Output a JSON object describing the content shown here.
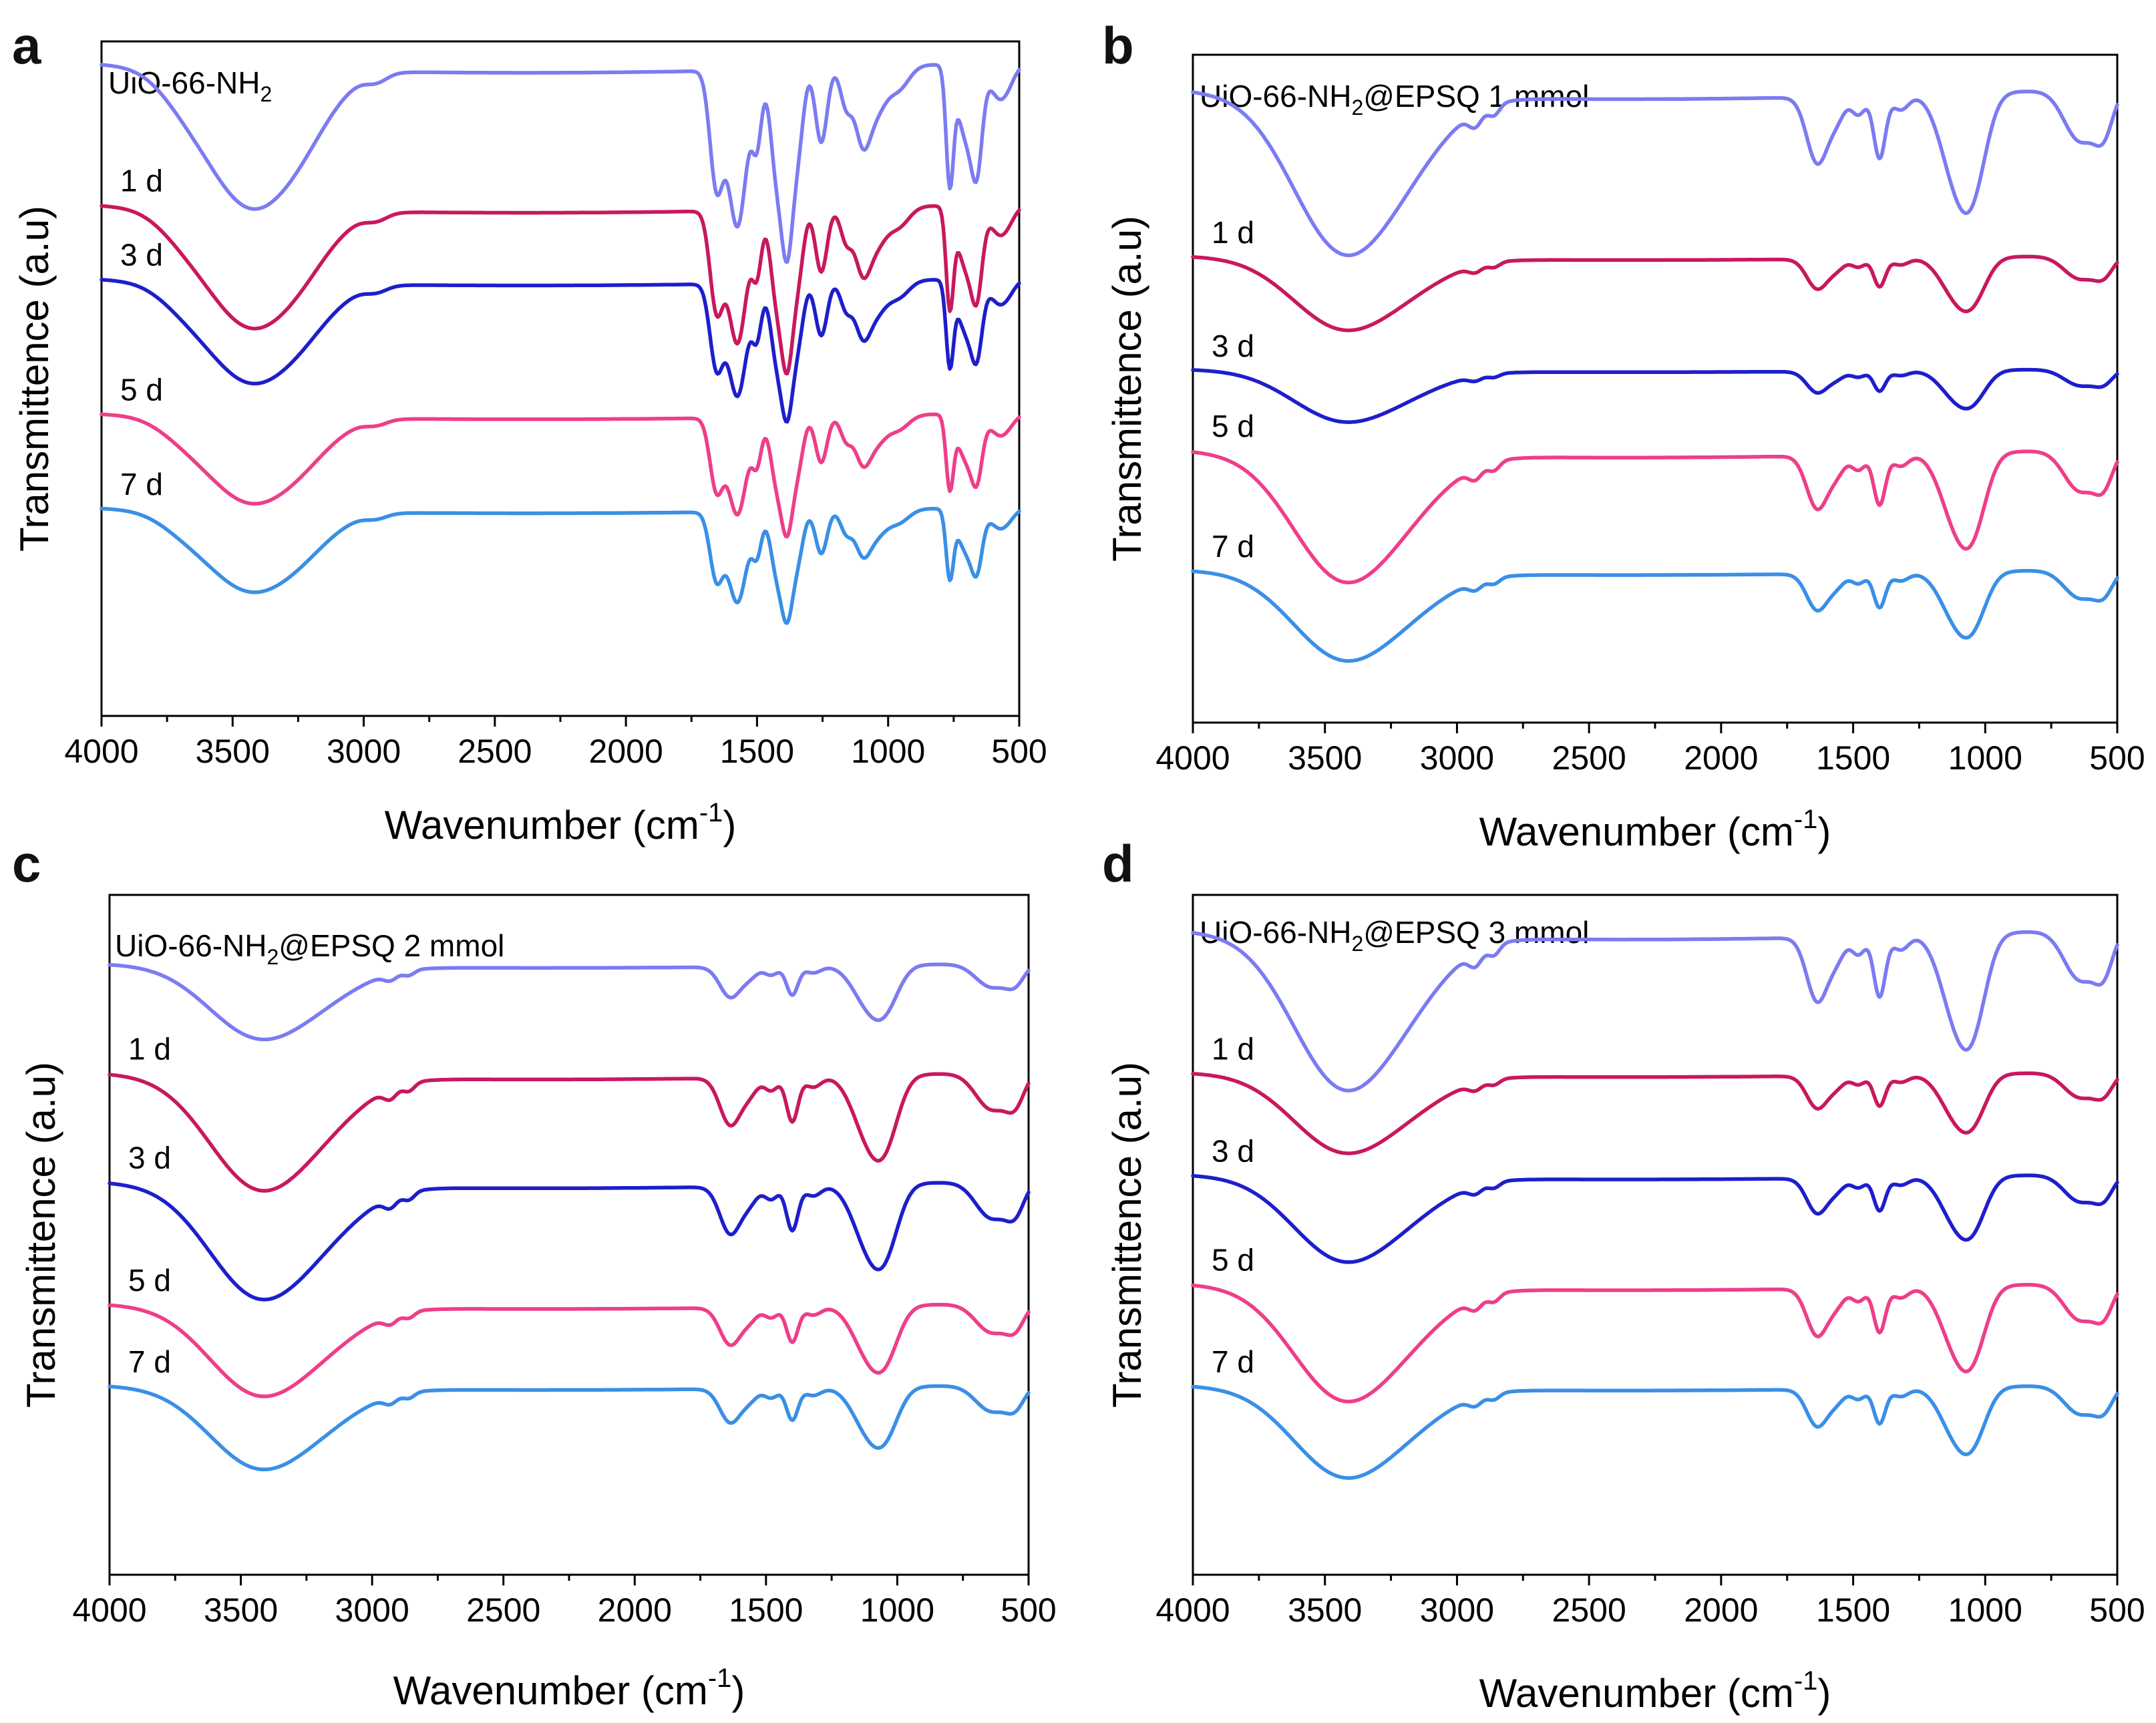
{
  "colors": {
    "raw": "#7B7BF2",
    "1 d": "#C8185E",
    "3 d": "#1E1ECC",
    "5 d": "#EE3E8A",
    "7 d": "#3A8FE6"
  },
  "chart_data": [
    {
      "panel": "a",
      "type": "line",
      "title": "UiO-66-NH2",
      "title_main": "UiO-66-NH",
      "title_sub": "2",
      "title_tail": "",
      "xlabel_main": "Wavenumber (cm",
      "xlabel_sup": "-1",
      "xlabel_tail": ")",
      "ylabel": "Transmittence (a.u)",
      "xlim": [
        4000,
        500
      ],
      "xticks": [
        "4000",
        "3500",
        "3000",
        "2500",
        "2000",
        "1500",
        "1000",
        "500"
      ],
      "profile": "mof",
      "series": [
        {
          "name": "",
          "color_key": "raw",
          "offset": 1.0,
          "scale": 1.0
        },
        {
          "name": "1 d",
          "color_key": "1 d",
          "offset": 0.79,
          "scale": 0.85
        },
        {
          "name": "3 d",
          "color_key": "3 d",
          "offset": 0.68,
          "scale": 0.72
        },
        {
          "name": "5 d",
          "color_key": "5 d",
          "offset": 0.48,
          "scale": 0.62
        },
        {
          "name": "7 d",
          "color_key": "7 d",
          "offset": 0.34,
          "scale": 0.58
        }
      ]
    },
    {
      "panel": "b",
      "type": "line",
      "title": "UiO-66-NH2@EPSQ 1 mmol",
      "title_main": "UiO-66-NH",
      "title_sub": "2",
      "title_tail": "@EPSQ 1 mmol",
      "xlabel_main": "Wavenumber (cm",
      "xlabel_sup": "-1",
      "xlabel_tail": ")",
      "ylabel": "Transmittence (a.u)",
      "xlim": [
        4000,
        500
      ],
      "xticks": [
        "4000",
        "3500",
        "3000",
        "2500",
        "2000",
        "1500",
        "1000",
        "500"
      ],
      "profile": "composite",
      "series": [
        {
          "name": "",
          "color_key": "raw",
          "offset": 0.98,
          "scale": 1.0
        },
        {
          "name": "1 d",
          "color_key": "1 d",
          "offset": 0.73,
          "scale": 0.45
        },
        {
          "name": "3 d",
          "color_key": "3 d",
          "offset": 0.56,
          "scale": 0.32
        },
        {
          "name": "5 d",
          "color_key": "5 d",
          "offset": 0.44,
          "scale": 0.8
        },
        {
          "name": "7 d",
          "color_key": "7 d",
          "offset": 0.26,
          "scale": 0.55
        }
      ]
    },
    {
      "panel": "c",
      "type": "line",
      "title": "UiO-66-NH2@EPSQ 2 mmol",
      "title_main": "UiO-66-NH",
      "title_sub": "2",
      "title_tail": "@EPSQ 2 mmol",
      "xlabel_main": "Wavenumber (cm",
      "xlabel_sup": "-1",
      "xlabel_tail": ")",
      "ylabel": "Transmittence (a.u)",
      "xlim": [
        4000,
        500
      ],
      "xticks": [
        "4000",
        "3500",
        "3000",
        "2500",
        "2000",
        "1500",
        "1000",
        "500"
      ],
      "profile": "composite",
      "series": [
        {
          "name": "",
          "color_key": "raw",
          "offset": 0.93,
          "scale": 0.45
        },
        {
          "name": "1 d",
          "color_key": "1 d",
          "offset": 0.77,
          "scale": 0.7
        },
        {
          "name": "3 d",
          "color_key": "3 d",
          "offset": 0.61,
          "scale": 0.7
        },
        {
          "name": "5 d",
          "color_key": "5 d",
          "offset": 0.43,
          "scale": 0.55
        },
        {
          "name": "7 d",
          "color_key": "7 d",
          "offset": 0.31,
          "scale": 0.5
        }
      ]
    },
    {
      "panel": "d",
      "type": "line",
      "title": "UiO-66-NH2@EPSQ 3 mmol",
      "title_main": "UiO-66-NH",
      "title_sub": "2",
      "title_tail": "@EPSQ 3 mmol",
      "xlabel_main": "Wavenumber (cm",
      "xlabel_sup": "-1",
      "xlabel_tail": ")",
      "ylabel": "Transmittence (a.u)",
      "xlim": [
        4000,
        500
      ],
      "xticks": [
        "4000",
        "3500",
        "3000",
        "2500",
        "2000",
        "1500",
        "1000",
        "500"
      ],
      "profile": "composite",
      "series": [
        {
          "name": "",
          "color_key": "raw",
          "offset": 0.98,
          "scale": 0.95
        },
        {
          "name": "1 d",
          "color_key": "1 d",
          "offset": 0.77,
          "scale": 0.48
        },
        {
          "name": "3 d",
          "color_key": "3 d",
          "offset": 0.62,
          "scale": 0.52
        },
        {
          "name": "5 d",
          "color_key": "5 d",
          "offset": 0.46,
          "scale": 0.7
        },
        {
          "name": "7 d",
          "color_key": "7 d",
          "offset": 0.31,
          "scale": 0.55
        }
      ]
    }
  ]
}
